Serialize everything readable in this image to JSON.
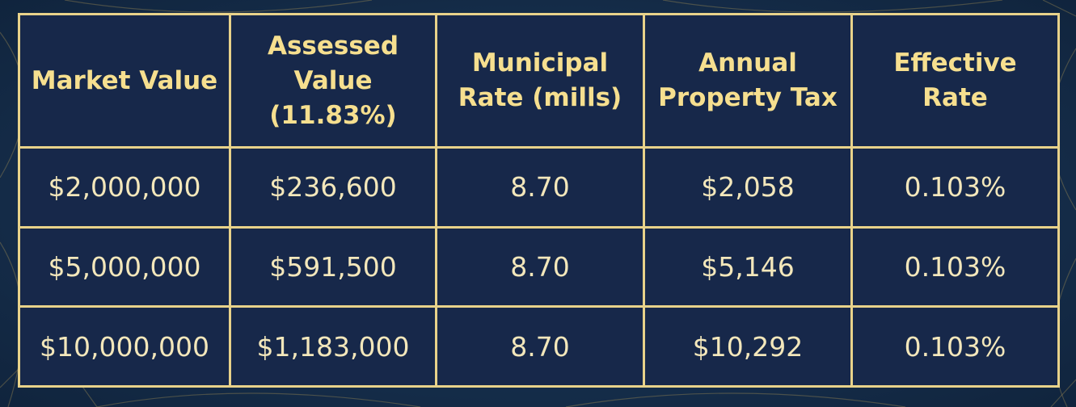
{
  "chart_data": {
    "type": "table",
    "columns": [
      "Market Value",
      "Assessed Value (11.83%)",
      "Municipal Rate (mills)",
      "Annual Property Tax",
      "Effective Rate"
    ],
    "header_lines": [
      [
        "Market Value"
      ],
      [
        "Assessed",
        "Value",
        "(11.83%)"
      ],
      [
        "Municipal",
        "Rate (mills)"
      ],
      [
        "Annual",
        "Property Tax"
      ],
      [
        "Effective",
        "Rate"
      ]
    ],
    "rows": [
      [
        "$2,000,000",
        "$236,600",
        "8.70",
        "$2,058",
        "0.103%"
      ],
      [
        "$5,000,000",
        "$591,500",
        "8.70",
        "$5,146",
        "0.103%"
      ],
      [
        "$10,000,000",
        "$1,183,000",
        "8.70",
        "$10,292",
        "0.103%"
      ]
    ]
  },
  "colors": {
    "background": "#15314f",
    "table_fill": "#17284a",
    "border_gold": "#e8d28a",
    "header_text": "#f6df8f",
    "cell_text": "#f3e7bb"
  }
}
